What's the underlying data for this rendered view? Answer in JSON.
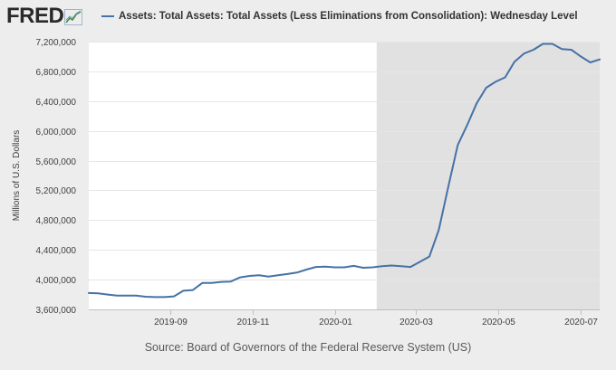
{
  "header": {
    "logo_text": "FRED",
    "logo_icon": "chart-line-icon"
  },
  "legend": {
    "label": "Assets: Total Assets: Total Assets (Less Eliminations from Consolidation): Wednesday Level"
  },
  "footer": {
    "source": "Source: Board of Governors of the Federal Reserve System (US)"
  },
  "colors": {
    "line": "#4572a7",
    "plot_background": "#ffffff",
    "recession_shading": "#e1e1e1",
    "page_background": "#ededed"
  },
  "chart_data": {
    "type": "line",
    "title": "",
    "ylabel": "Millions of U.S. Dollars",
    "xlabel": "",
    "ylim": [
      3600000,
      7200000
    ],
    "xlim": [
      "2019-07-03",
      "2020-07-15"
    ],
    "grid": true,
    "legend_position": "top",
    "yticks": [
      3600000,
      4000000,
      4400000,
      4800000,
      5200000,
      5600000,
      6000000,
      6400000,
      6800000,
      7200000
    ],
    "ytick_labels": [
      "3,600,000",
      "4,000,000",
      "4,400,000",
      "4,800,000",
      "5,200,000",
      "5,600,000",
      "6,000,000",
      "6,400,000",
      "6,800,000",
      "7,200,000"
    ],
    "xticks": [
      "2019-09-01",
      "2019-11-01",
      "2020-01-01",
      "2020-03-01",
      "2020-05-01",
      "2020-07-01"
    ],
    "xtick_labels": [
      "2019-09",
      "2019-11",
      "2020-01",
      "2020-03",
      "2020-05",
      "2020-07"
    ],
    "shaded_regions": [
      {
        "start": "2020-02-01",
        "end": "2020-07-15"
      }
    ],
    "series": [
      {
        "x": [
          "2019-07-03",
          "2019-07-10",
          "2019-07-17",
          "2019-07-24",
          "2019-07-31",
          "2019-08-07",
          "2019-08-14",
          "2019-08-21",
          "2019-08-28",
          "2019-09-04",
          "2019-09-11",
          "2019-09-18",
          "2019-09-25",
          "2019-10-02",
          "2019-10-09",
          "2019-10-16",
          "2019-10-23",
          "2019-10-30",
          "2019-11-06",
          "2019-11-13",
          "2019-11-20",
          "2019-11-27",
          "2019-12-04",
          "2019-12-11",
          "2019-12-18",
          "2019-12-25",
          "2020-01-01",
          "2020-01-08",
          "2020-01-15",
          "2020-01-22",
          "2020-01-29",
          "2020-02-05",
          "2020-02-12",
          "2020-02-19",
          "2020-02-26",
          "2020-03-04",
          "2020-03-11",
          "2020-03-18",
          "2020-03-25",
          "2020-04-01",
          "2020-04-08",
          "2020-04-15",
          "2020-04-22",
          "2020-04-29",
          "2020-05-06",
          "2020-05-13",
          "2020-05-20",
          "2020-05-27",
          "2020-06-03",
          "2020-06-10",
          "2020-06-17",
          "2020-06-24",
          "2020-07-01",
          "2020-07-08",
          "2020-07-15"
        ],
        "y": [
          3820000,
          3815000,
          3800000,
          3785000,
          3785000,
          3785000,
          3770000,
          3765000,
          3765000,
          3775000,
          3850000,
          3860000,
          3955000,
          3955000,
          3970000,
          3975000,
          4030000,
          4050000,
          4060000,
          4040000,
          4060000,
          4075000,
          4095000,
          4135000,
          4170000,
          4175000,
          4165000,
          4165000,
          4185000,
          4160000,
          4165000,
          4180000,
          4190000,
          4180000,
          4170000,
          4240000,
          4310000,
          4670000,
          5250000,
          5810000,
          6080000,
          6370000,
          6580000,
          6660000,
          6720000,
          6930000,
          7040000,
          7090000,
          7170000,
          7170000,
          7100000,
          7090000,
          7000000,
          6920000,
          6960000
        ]
      }
    ]
  }
}
